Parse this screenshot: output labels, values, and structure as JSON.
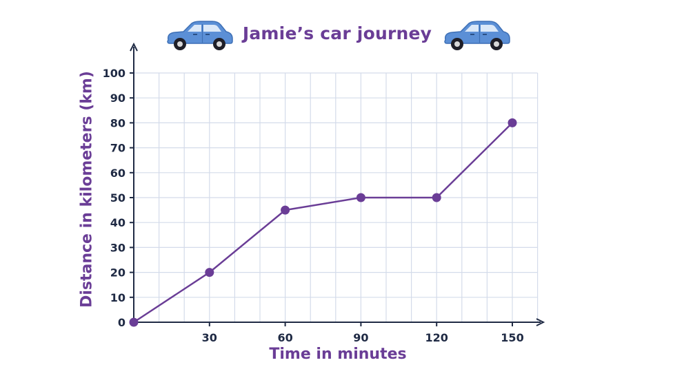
{
  "chart_data": {
    "type": "line",
    "title": "Jamie’s car journey",
    "xlabel": "Time in minutes",
    "ylabel": "Distance in kilometers (km)",
    "x": [
      0,
      30,
      60,
      90,
      120,
      150
    ],
    "series": [
      {
        "values": [
          0,
          20,
          45,
          50,
          50,
          80
        ]
      }
    ],
    "xlim": [
      0,
      160
    ],
    "ylim": [
      0,
      100
    ],
    "xticks": [
      30,
      60,
      90,
      120,
      150
    ],
    "yticks": [
      0,
      10,
      20,
      30,
      40,
      50,
      60,
      70,
      80,
      90,
      100
    ],
    "x_minor_grid_step": 10,
    "grid": true,
    "colors": {
      "line": "#6a3d96",
      "marker": "#6a3d96",
      "grid": "#d4dbea",
      "axis": "#1f2a44",
      "title": "#6a3d96",
      "car_body": "#5b8fd6"
    },
    "decorations": [
      "car-icon",
      "car-icon"
    ]
  }
}
